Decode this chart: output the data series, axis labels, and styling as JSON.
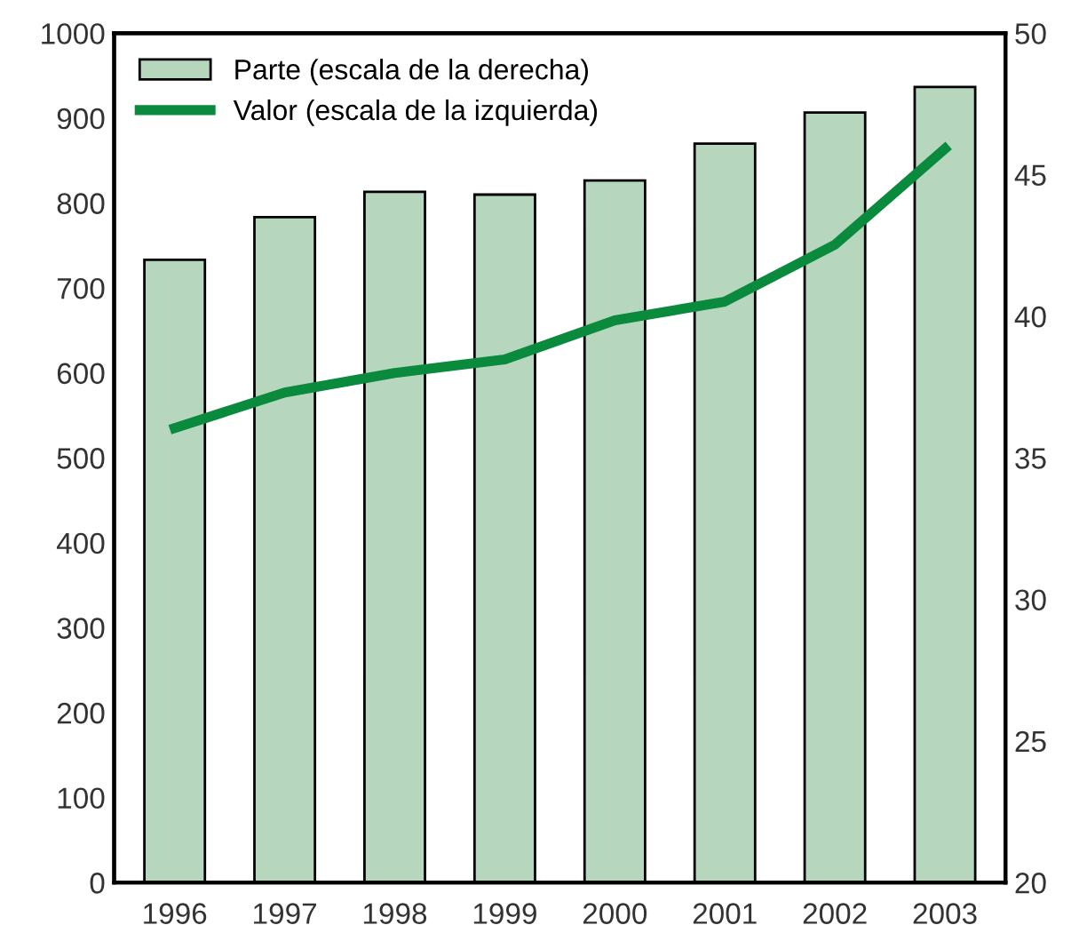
{
  "chart_data": {
    "type": "bar",
    "categories": [
      "1996",
      "1997",
      "1998",
      "1999",
      "2000",
      "2001",
      "2002",
      "2003"
    ],
    "series": [
      {
        "name": "Parte (escala de la derecha)",
        "axis": "y2",
        "color": "#b7d6be",
        "values": [
          42.0,
          43.5,
          44.4,
          44.3,
          44.8,
          46.1,
          47.2,
          48.1
        ]
      },
      {
        "name": "Valor (escala de la izquierda)",
        "type": "line",
        "color": "#0a8a3c",
        "values": [
          535,
          577,
          600,
          616,
          662,
          684,
          751,
          864
        ]
      }
    ],
    "ylim": [
      0,
      1000
    ],
    "yticks": [
      0,
      100,
      200,
      300,
      400,
      500,
      600,
      700,
      800,
      900,
      1000
    ],
    "y2lim": [
      20,
      50
    ],
    "y2ticks": [
      20,
      25,
      30,
      35,
      40,
      45,
      50
    ],
    "legend": "top left"
  }
}
